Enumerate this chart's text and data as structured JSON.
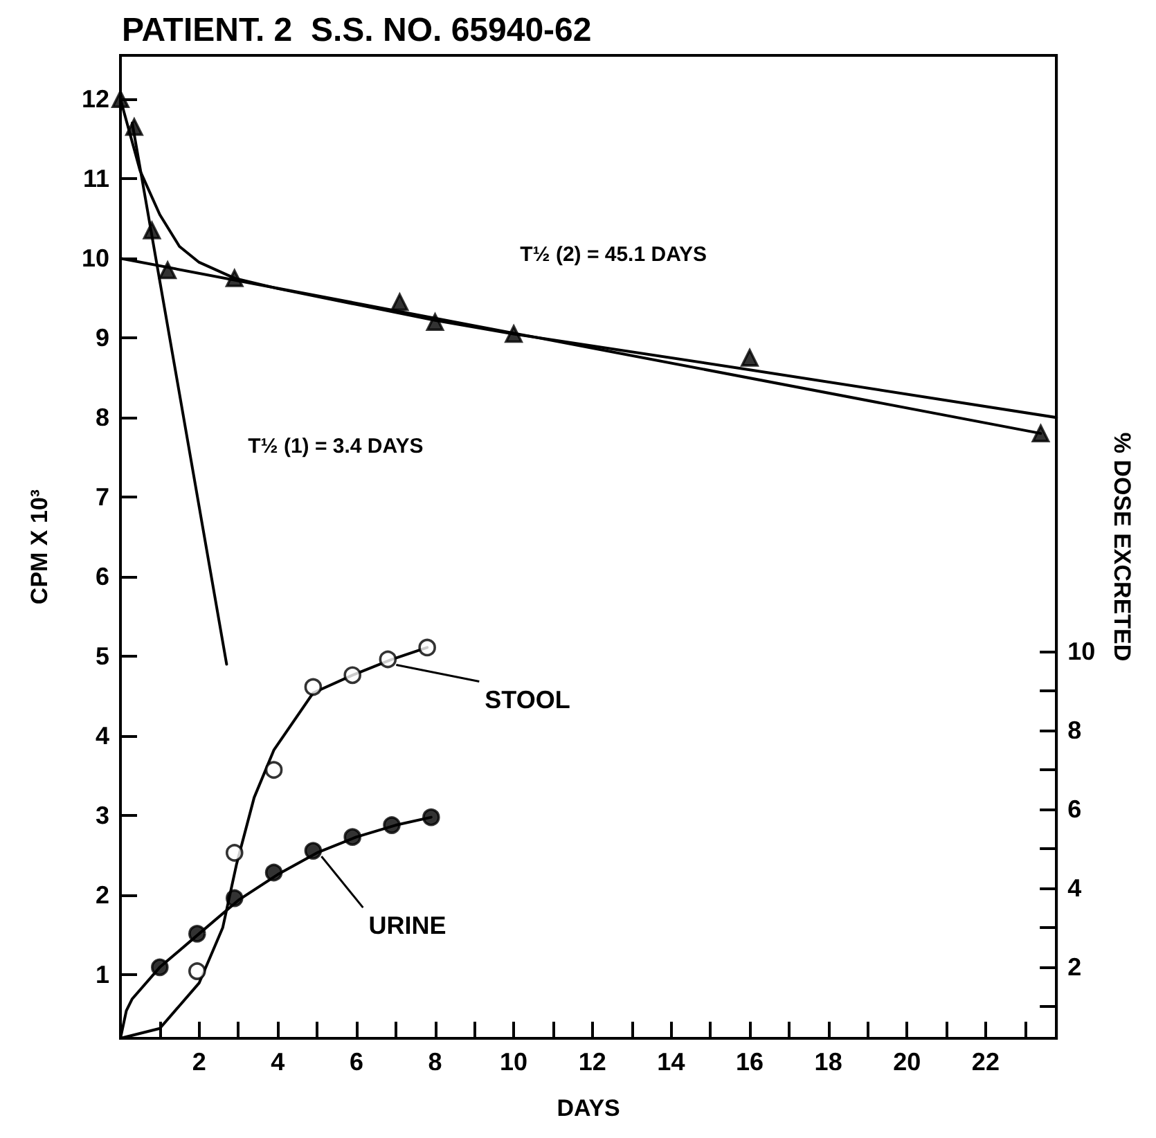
{
  "chart_data": {
    "type": "line",
    "title": "PATIENT. 2  S.S. NO. 65940-62",
    "xlabel": "DAYS",
    "ylabel": "CPM X 10³",
    "y2label": "% DOSE EXCRETED",
    "xlim": [
      0,
      23.8
    ],
    "ylim": [
      0.2,
      12.55
    ],
    "y2lim": [
      0.2,
      25.1
    ],
    "xticks": [
      {
        "value": 1,
        "label": null
      },
      2,
      {
        "value": 3,
        "label": null
      },
      4,
      {
        "value": 5,
        "label": null
      },
      6,
      {
        "value": 7,
        "label": null
      },
      8,
      {
        "value": 9,
        "label": null
      },
      10,
      {
        "value": 11,
        "label": null
      },
      12,
      {
        "value": 13,
        "label": null
      },
      14,
      {
        "value": 15,
        "label": null
      },
      16,
      {
        "value": 17,
        "label": null
      },
      18,
      {
        "value": 19,
        "label": null
      },
      20,
      {
        "value": 21,
        "label": null
      },
      22,
      {
        "value": 23,
        "label": null
      }
    ],
    "yticks": [
      1,
      2,
      3,
      4,
      5,
      6,
      7,
      8,
      9,
      10,
      11,
      12
    ],
    "y2ticks": [
      {
        "value": 1,
        "label": null
      },
      2,
      {
        "value": 3,
        "label": null
      },
      4,
      {
        "value": 5,
        "label": null
      },
      6,
      {
        "value": 7,
        "label": null
      },
      8,
      {
        "value": 9,
        "label": null
      },
      10
    ],
    "grid": false,
    "series": [
      {
        "type": "scatter",
        "marker": "triangle",
        "color": "#000000",
        "x": [
          0,
          0.35,
          0.8,
          1.2,
          2.9,
          7.1,
          8,
          10,
          16,
          23.4
        ],
        "values": [
          12.0,
          11.65,
          10.35,
          9.85,
          9.75,
          9.45,
          9.2,
          9.05,
          8.75,
          7.8
        ]
      },
      {
        "color": "#000000",
        "x": [
          0,
          0.5,
          1,
          1.5,
          2,
          2.9,
          4,
          6,
          8,
          10,
          16,
          23.8
        ],
        "values": [
          12.0,
          11.1,
          10.55,
          10.15,
          9.95,
          9.75,
          9.62,
          9.42,
          9.22,
          9.05,
          8.6,
          8.0
        ]
      },
      {
        "color": "#000000",
        "x": [
          0,
          23.4
        ],
        "values": [
          10.0,
          7.8
        ]
      },
      {
        "color": "#000000",
        "x": [
          0.3,
          2.7
        ],
        "values": [
          11.7,
          4.9
        ]
      },
      {
        "type": "scatter",
        "name": "STOOL",
        "marker": "circle",
        "color": "#ffffff",
        "axis": "y2",
        "x": [
          1.95,
          2.9,
          3.9,
          4.9,
          5.9,
          6.8,
          7.8
        ],
        "values": [
          1.9,
          4.9,
          7.0,
          9.1,
          9.4,
          9.8,
          10.1
        ]
      },
      {
        "color": "#000000",
        "axis": "y2",
        "x": [
          0,
          1,
          2,
          2.6,
          2.95,
          3.4,
          3.9,
          4.9,
          5.9,
          6.9,
          7.8
        ],
        "values": [
          0.2,
          0.45,
          1.6,
          3.0,
          4.6,
          6.3,
          7.5,
          8.95,
          9.4,
          9.8,
          10.1
        ]
      },
      {
        "type": "scatter",
        "name": "URINE",
        "marker": "circle",
        "color": "#000000",
        "axis": "y2",
        "x": [
          1.0,
          1.95,
          2.9,
          3.9,
          4.9,
          5.9,
          6.9,
          7.9
        ],
        "values": [
          2.0,
          2.85,
          3.75,
          4.4,
          4.95,
          5.3,
          5.6,
          5.8
        ]
      },
      {
        "color": "#000000",
        "axis": "y2",
        "x": [
          0,
          0.15,
          0.3,
          1,
          2,
          3,
          4,
          5,
          6,
          7,
          7.9
        ],
        "values": [
          0.2,
          0.9,
          1.2,
          2.0,
          2.85,
          3.7,
          4.35,
          4.9,
          5.3,
          5.6,
          5.8
        ]
      }
    ],
    "annotations": [
      "T½ (1) = 3.4 DAYS",
      "T½ (2) = 45.1 DAYS"
    ]
  }
}
